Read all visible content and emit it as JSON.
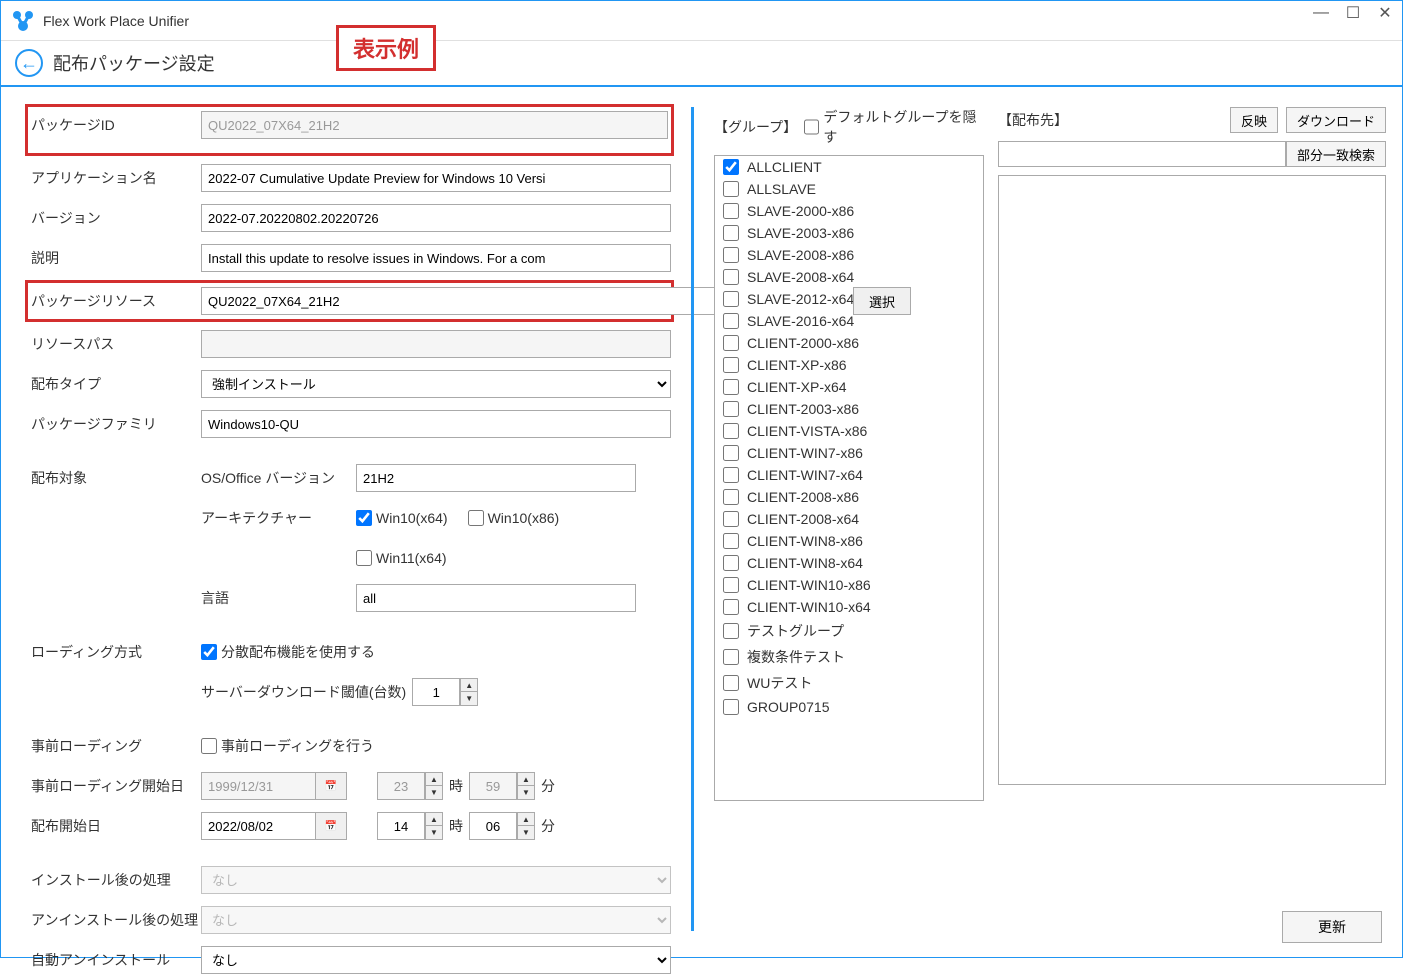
{
  "app": {
    "title": "Flex Work Place Unifier"
  },
  "header": {
    "page_title": "配布パッケージ設定",
    "example_badge": "表示例"
  },
  "form": {
    "package_id": {
      "label": "パッケージID",
      "value": "QU2022_07X64_21H2"
    },
    "app_name": {
      "label": "アプリケーション名",
      "value": "2022-07 Cumulative Update Preview for Windows 10 Versi"
    },
    "version": {
      "label": "バージョン",
      "value": "2022-07.20220802.20220726"
    },
    "description": {
      "label": "説明",
      "value": "Install this update to resolve issues in Windows. For a com"
    },
    "package_resource": {
      "label": "パッケージリソース",
      "value": "QU2022_07X64_21H2",
      "select_btn": "選択"
    },
    "resource_path": {
      "label": "リソースパス",
      "value": ""
    },
    "dist_type": {
      "label": "配布タイプ",
      "value": "強制インストール"
    },
    "package_family": {
      "label": "パッケージファミリ",
      "value": "Windows10-QU"
    },
    "target": {
      "label": "配布対象",
      "os_version": {
        "label": "OS/Office バージョン",
        "value": "21H2"
      },
      "arch": {
        "label": "アーキテクチャー",
        "win10x64": "Win10(x64)",
        "win10x86": "Win10(x86)",
        "win11x64": "Win11(x64)"
      },
      "language": {
        "label": "言語",
        "value": "all"
      }
    },
    "loading_method": {
      "label": "ローディング方式",
      "use_dist": "分散配布機能を使用する",
      "threshold_label": "サーバーダウンロード閾値(台数)",
      "threshold_value": "1"
    },
    "preloading": {
      "label": "事前ローディング",
      "checkbox_label": "事前ローディングを行う"
    },
    "preloading_start": {
      "label": "事前ローディング開始日",
      "date": "1999/12/31",
      "hour": "23",
      "minute": "59",
      "hour_unit": "時",
      "minute_unit": "分"
    },
    "dist_start": {
      "label": "配布開始日",
      "date": "2022/08/02",
      "hour": "14",
      "minute": "06",
      "hour_unit": "時",
      "minute_unit": "分"
    },
    "post_install": {
      "label": "インストール後の処理",
      "value": "なし"
    },
    "post_uninstall": {
      "label": "アンインストール後の処理",
      "value": "なし"
    },
    "auto_uninstall": {
      "label": "自動アンインストール",
      "value": "なし"
    }
  },
  "groups": {
    "header_label": "【グループ】",
    "hide_default": "デフォルトグループを隠す",
    "items": [
      {
        "label": "ALLCLIENT",
        "checked": true
      },
      {
        "label": "ALLSLAVE",
        "checked": false
      },
      {
        "label": "SLAVE-2000-x86",
        "checked": false
      },
      {
        "label": "SLAVE-2003-x86",
        "checked": false
      },
      {
        "label": "SLAVE-2008-x86",
        "checked": false
      },
      {
        "label": "SLAVE-2008-x64",
        "checked": false
      },
      {
        "label": "SLAVE-2012-x64",
        "checked": false
      },
      {
        "label": "SLAVE-2016-x64",
        "checked": false
      },
      {
        "label": "CLIENT-2000-x86",
        "checked": false
      },
      {
        "label": "CLIENT-XP-x86",
        "checked": false
      },
      {
        "label": "CLIENT-XP-x64",
        "checked": false
      },
      {
        "label": "CLIENT-2003-x86",
        "checked": false
      },
      {
        "label": "CLIENT-VISTA-x86",
        "checked": false
      },
      {
        "label": "CLIENT-WIN7-x86",
        "checked": false
      },
      {
        "label": "CLIENT-WIN7-x64",
        "checked": false
      },
      {
        "label": "CLIENT-2008-x86",
        "checked": false
      },
      {
        "label": "CLIENT-2008-x64",
        "checked": false
      },
      {
        "label": "CLIENT-WIN8-x86",
        "checked": false
      },
      {
        "label": "CLIENT-WIN8-x64",
        "checked": false
      },
      {
        "label": "CLIENT-WIN10-x86",
        "checked": false
      },
      {
        "label": "CLIENT-WIN10-x64",
        "checked": false
      },
      {
        "label": "テストグループ",
        "checked": false
      },
      {
        "label": "複数条件テスト",
        "checked": false
      },
      {
        "label": "WUテスト",
        "checked": false
      },
      {
        "label": "GROUP0715",
        "checked": false
      }
    ]
  },
  "dest": {
    "header_label": "【配布先】",
    "apply_btn": "反映",
    "download_btn": "ダウンロード",
    "search_btn": "部分一致検索"
  },
  "footer": {
    "update_btn": "更新"
  },
  "colors": {
    "accent": "#2196f3",
    "highlight": "#d32f2f"
  }
}
